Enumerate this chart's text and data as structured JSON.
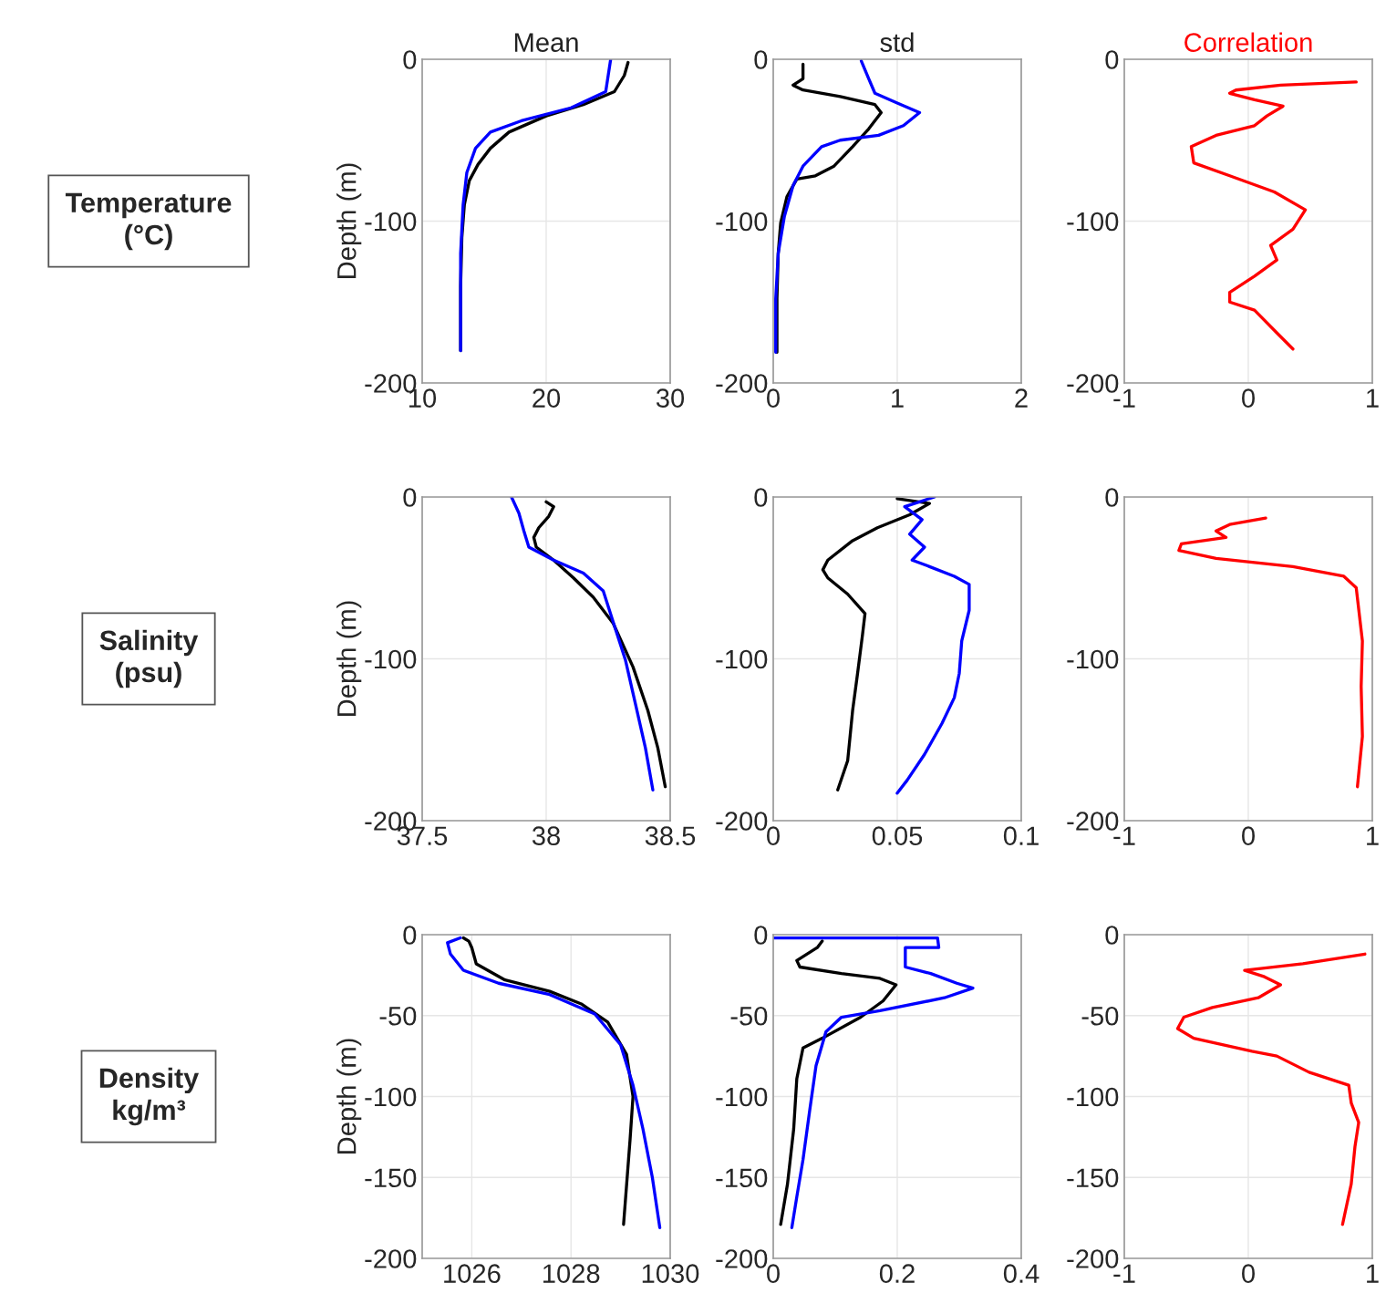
{
  "chart_data": [
    {
      "type": "line",
      "title": "Mean",
      "ylabel": "Depth (m)",
      "annotations": [
        "Temperature\n(°C)"
      ],
      "xlim": [
        10,
        30
      ],
      "xticks": [
        10,
        20,
        30
      ],
      "ylim": [
        -200,
        0
      ],
      "yticks": [
        -200,
        -100,
        0
      ],
      "grid": true,
      "series": [
        {
          "color": "#000000",
          "x": [
            26.6,
            26.3,
            25.5,
            23,
            20,
            17,
            15.5,
            14.5,
            13.8,
            13.4,
            13.2,
            13.1,
            13.1
          ],
          "values": [
            -2,
            -10,
            -20,
            -28,
            -35,
            -45,
            -55,
            -65,
            -75,
            -90,
            -110,
            -140,
            -180
          ]
        },
        {
          "color": "#0000ff",
          "x": [
            25.2,
            25,
            24.8,
            22,
            18,
            15.5,
            14.3,
            13.6,
            13.3,
            13.1,
            13.1
          ],
          "values": [
            0,
            -10,
            -20,
            -30,
            -38,
            -45,
            -55,
            -70,
            -90,
            -120,
            -180
          ]
        }
      ]
    },
    {
      "type": "line",
      "title": "std",
      "xlim": [
        0,
        2
      ],
      "xticks": [
        0,
        1,
        2
      ],
      "ylim": [
        -200,
        0
      ],
      "yticks": [
        -200,
        -100,
        0
      ],
      "grid": true,
      "series": [
        {
          "color": "#000000",
          "x": [
            0.24,
            0.24,
            0.16,
            0.24,
            0.54,
            0.82,
            0.87,
            0.77,
            0.64,
            0.49,
            0.34,
            0.19,
            0.11,
            0.06,
            0.04,
            0.03,
            0.03
          ],
          "values": [
            -3,
            -12,
            -16,
            -19,
            -23,
            -28,
            -33,
            -43,
            -54,
            -66,
            -72,
            -74,
            -85,
            -101,
            -120,
            -148,
            -181
          ]
        },
        {
          "color": "#0000ff",
          "x": [
            0.71,
            0.77,
            0.82,
            1.0,
            1.18,
            1.05,
            0.85,
            0.54,
            0.39,
            0.24,
            0.16,
            0.09,
            0.04,
            0.02,
            0.02
          ],
          "values": [
            -1,
            -12,
            -21,
            -27,
            -33,
            -41,
            -47,
            -50,
            -54,
            -66,
            -78,
            -97,
            -120,
            -148,
            -181
          ]
        }
      ]
    },
    {
      "type": "line",
      "title": "Correlation",
      "xlim": [
        -1,
        1
      ],
      "xticks": [
        -1,
        0,
        1
      ],
      "ylim": [
        -200,
        0
      ],
      "yticks": [
        -200,
        -100,
        0
      ],
      "grid": true,
      "series": [
        {
          "color": "#ff0000",
          "x": [
            0.87,
            0.26,
            -0.1,
            -0.15,
            0.05,
            0.28,
            0.15,
            0.05,
            -0.26,
            -0.46,
            -0.44,
            -0.15,
            0.21,
            0.46,
            0.36,
            0.18,
            0.23,
            0.05,
            -0.15,
            -0.15,
            0.05,
            0.23,
            0.36
          ],
          "values": [
            -14,
            -16,
            -19,
            -21,
            -25,
            -29,
            -35,
            -41,
            -47,
            -54,
            -64,
            -72,
            -82,
            -93,
            -105,
            -115,
            -124,
            -134,
            -144,
            -150,
            -155,
            -169,
            -179
          ]
        }
      ]
    },
    {
      "type": "line",
      "ylabel": "Depth (m)",
      "annotations": [
        "Salinity\n(psu)"
      ],
      "xlim": [
        37.5,
        38.5
      ],
      "xticks": [
        37.5,
        38,
        38.5
      ],
      "ylim": [
        -200,
        0
      ],
      "yticks": [
        -200,
        -100,
        0
      ],
      "grid": true,
      "series": [
        {
          "color": "#000000",
          "x": [
            38.0,
            38.03,
            38.01,
            37.97,
            37.95,
            37.96,
            38.03,
            38.11,
            38.19,
            38.27,
            38.35,
            38.41,
            38.45,
            38.48
          ],
          "values": [
            -3,
            -6,
            -12,
            -19,
            -25,
            -31,
            -39,
            -50,
            -62,
            -78,
            -105,
            -132,
            -155,
            -179
          ]
        },
        {
          "color": "#0000ff",
          "x": [
            37.86,
            37.89,
            37.91,
            37.93,
            38.03,
            38.15,
            38.23,
            38.28,
            38.32,
            38.36,
            38.4,
            38.43
          ],
          "values": [
            0,
            -10,
            -21,
            -31,
            -39,
            -47,
            -58,
            -82,
            -101,
            -128,
            -155,
            -181
          ]
        }
      ]
    },
    {
      "type": "line",
      "xlim": [
        0,
        0.1
      ],
      "xticks": [
        0,
        0.05,
        0.1
      ],
      "ylim": [
        -200,
        0
      ],
      "yticks": [
        -200,
        -100,
        0
      ],
      "grid": true,
      "series": [
        {
          "color": "#000000",
          "x": [
            0.05,
            0.063,
            0.055,
            0.042,
            0.032,
            0.022,
            0.02,
            0.022,
            0.03,
            0.037,
            0.036,
            0.034,
            0.032,
            0.03,
            0.026
          ],
          "values": [
            -1,
            -4,
            -11,
            -19,
            -27,
            -39,
            -45,
            -50,
            -60,
            -72,
            -85,
            -109,
            -132,
            -163,
            -181
          ]
        },
        {
          "color": "#0000ff",
          "x": [
            0.065,
            0.053,
            0.06,
            0.055,
            0.061,
            0.056,
            0.063,
            0.073,
            0.079,
            0.079,
            0.076,
            0.075,
            0.073,
            0.068,
            0.061,
            0.054,
            0.05
          ],
          "values": [
            0,
            -6,
            -14,
            -23,
            -31,
            -39,
            -43,
            -49,
            -54,
            -70,
            -89,
            -109,
            -124,
            -140,
            -159,
            -175,
            -183
          ]
        }
      ]
    },
    {
      "type": "line",
      "xlim": [
        -1,
        1
      ],
      "xticks": [
        -1,
        0,
        1
      ],
      "ylim": [
        -200,
        0
      ],
      "yticks": [
        -200,
        -100,
        0
      ],
      "grid": true,
      "series": [
        {
          "color": "#ff0000",
          "x": [
            0.14,
            -0.15,
            -0.26,
            -0.18,
            -0.54,
            -0.56,
            -0.26,
            0.36,
            0.77,
            0.87,
            0.92,
            0.91,
            0.92,
            0.88
          ],
          "values": [
            -13,
            -17,
            -21,
            -25,
            -29,
            -33,
            -38,
            -43,
            -49,
            -56,
            -89,
            -117,
            -148,
            -179
          ]
        }
      ]
    },
    {
      "type": "line",
      "ylabel": "Depth (m)",
      "annotations": [
        "Density\nkg/m³"
      ],
      "xlim": [
        1025,
        1030
      ],
      "xticks": [
        1026,
        1028,
        1030
      ],
      "ylim": [
        -200,
        0
      ],
      "yticks": [
        -200,
        -150,
        -100,
        -50,
        0
      ],
      "grid": true,
      "series": [
        {
          "color": "#000000",
          "x": [
            1025.83,
            1025.94,
            1026.0,
            1026.09,
            1026.67,
            1027.57,
            1028.22,
            1028.74,
            1029.12,
            1029.25,
            1029.19,
            1029.06
          ],
          "values": [
            -2,
            -4,
            -8,
            -18,
            -28,
            -35,
            -43,
            -54,
            -74,
            -100,
            -127,
            -179
          ]
        },
        {
          "color": "#0000ff",
          "x": [
            1025.77,
            1025.51,
            1025.57,
            1025.83,
            1026.54,
            1027.57,
            1028.48,
            1029.0,
            1029.25,
            1029.45,
            1029.64,
            1029.79
          ],
          "values": [
            -2,
            -5,
            -12,
            -22,
            -30,
            -37,
            -49,
            -68,
            -93,
            -120,
            -150,
            -181
          ]
        }
      ]
    },
    {
      "type": "line",
      "xlim": [
        0,
        0.4
      ],
      "xticks": [
        0,
        0.2,
        0.4
      ],
      "ylim": [
        -200,
        0
      ],
      "yticks": [
        -200,
        -150,
        -100,
        -50,
        0
      ],
      "grid": true,
      "series": [
        {
          "color": "#000000",
          "x": [
            0.079,
            0.071,
            0.038,
            0.043,
            0.11,
            0.172,
            0.198,
            0.177,
            0.141,
            0.079,
            0.048,
            0.038,
            0.033,
            0.023,
            0.012
          ],
          "values": [
            -4,
            -8,
            -16,
            -20,
            -24,
            -27,
            -31,
            -41,
            -51,
            -64,
            -70,
            -89,
            -120,
            -154,
            -179
          ]
        },
        {
          "color": "#0000ff",
          "x": [
            0,
            0.265,
            0.267,
            0.213,
            0.213,
            0.254,
            0.296,
            0.322,
            0.276,
            0.172,
            0.11,
            0.085,
            0.069,
            0.059,
            0.048,
            0.038,
            0.03
          ],
          "values": [
            -2,
            -2,
            -8,
            -8,
            -20,
            -24,
            -30,
            -33,
            -39,
            -47,
            -51,
            -60,
            -81,
            -108,
            -139,
            -162,
            -181
          ]
        }
      ]
    },
    {
      "type": "line",
      "xlim": [
        -1,
        1
      ],
      "xticks": [
        -1,
        0,
        1
      ],
      "ylim": [
        -200,
        0
      ],
      "yticks": [
        -200,
        -150,
        -100,
        -50,
        0
      ],
      "grid": true,
      "series": [
        {
          "color": "#ff0000",
          "x": [
            0.94,
            0.44,
            -0.03,
            0.13,
            0.26,
            0.08,
            -0.29,
            -0.52,
            -0.57,
            -0.44,
            0.03,
            0.23,
            0.49,
            0.81,
            0.83,
            0.89,
            0.86,
            0.83,
            0.76
          ],
          "values": [
            -12,
            -18,
            -22,
            -26,
            -31,
            -39,
            -45,
            -51,
            -58,
            -64,
            -72,
            -75,
            -85,
            -93,
            -104,
            -116,
            -131,
            -154,
            -179
          ]
        }
      ]
    }
  ]
}
